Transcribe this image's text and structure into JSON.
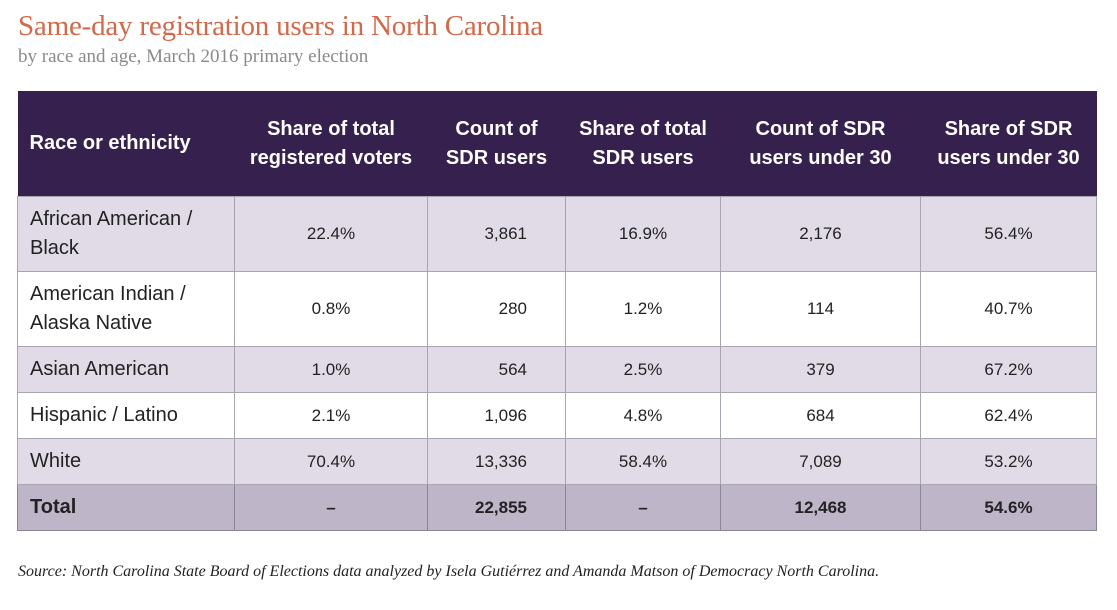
{
  "title": "Same-day registration users in North Carolina",
  "subtitle": "by race and age, March 2016 primary election",
  "source": "Source: North Carolina State Board of Elections data analyzed by Isela Gutiérrez and Amanda Matson of Democracy North Carolina.",
  "colors": {
    "title": "#d2694a",
    "header_bg": "#36204e",
    "row_shade": "#e0dbe7",
    "total_bg": "#bfb5c9"
  },
  "chart_data": {
    "type": "table",
    "columns": [
      "Race or ethnicity",
      "Share of total registered voters",
      "Count of SDR users",
      "Share of total SDR users",
      "Count of SDR users under 30",
      "Share of SDR users under 30"
    ],
    "rows": [
      [
        "African American / Black",
        "22.4%",
        "3,861",
        "16.9%",
        "2,176",
        "56.4%"
      ],
      [
        "American Indian / Alaska Native",
        "0.8%",
        "280",
        "1.2%",
        "114",
        "40.7%"
      ],
      [
        "Asian American",
        "1.0%",
        "564",
        "2.5%",
        "379",
        "67.2%"
      ],
      [
        "Hispanic / Latino",
        "2.1%",
        "1,096",
        "4.8%",
        "684",
        "62.4%"
      ],
      [
        "White",
        "70.4%",
        "13,336",
        "58.4%",
        "7,089",
        "53.2%"
      ]
    ],
    "total": [
      "Total",
      "–",
      "22,855",
      "–",
      "12,468",
      "54.6%"
    ]
  }
}
